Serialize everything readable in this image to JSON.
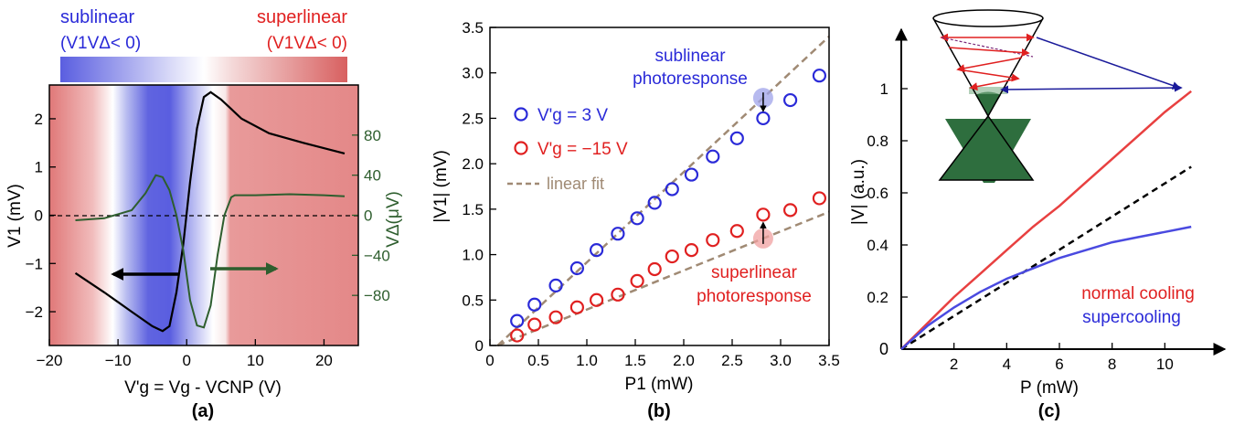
{
  "colors": {
    "blue": "#2a2ad8",
    "red": "#e02020",
    "green": "#2e5e2e",
    "tan": "#a08a74",
    "black": "#000000",
    "blue_band": "#5a5ee0",
    "red_band": "#e48888"
  },
  "chart_data": [
    {
      "type": "line",
      "panel_label": "(a)",
      "xlabel": "V'g = Vg - VCNP (V)",
      "ylabel_left": "V1 (mV)",
      "ylabel_right": "VΔ(μV)",
      "xlim": [
        -20,
        25
      ],
      "ylim_left": [
        -2.7,
        2.7
      ],
      "ylim_right": [
        -130,
        130
      ],
      "x_ticks": [
        -20,
        -10,
        0,
        10,
        20
      ],
      "y_ticks_left": [
        -2,
        -1,
        0,
        1,
        2
      ],
      "y_ticks_right": [
        -80,
        -40,
        0,
        40,
        80
      ],
      "colorbar": {
        "left_label": "sublinear",
        "left_sub": "(V1VΔ< 0)",
        "right_label": "superlinear",
        "right_sub": "(V1VΔ< 0)"
      },
      "series": [
        {
          "axis": "left",
          "x": [
            -16.2,
            -12,
            -8,
            -5,
            -3.5,
            -2.5,
            -1.5,
            -0.5,
            0.5,
            1.5,
            2.5,
            3.5,
            5,
            8,
            12,
            17,
            23
          ],
          "y": [
            -1.2,
            -1.6,
            -2.0,
            -2.3,
            -2.4,
            -2.3,
            -1.6,
            -0.6,
            0.7,
            1.8,
            2.45,
            2.55,
            2.4,
            2.0,
            1.7,
            1.5,
            1.28
          ]
        },
        {
          "axis": "right",
          "x": [
            -16.2,
            -12,
            -8,
            -6,
            -4.5,
            -3.5,
            -2.5,
            -1.5,
            -0.5,
            0.5,
            1.5,
            2.5,
            3.5,
            4.5,
            5.5,
            6.5,
            7,
            10,
            15,
            20,
            23
          ],
          "y": [
            -5,
            -3,
            5,
            22,
            40,
            38,
            25,
            0,
            -35,
            -85,
            -110,
            -112,
            -90,
            -40,
            0,
            18,
            20,
            20,
            21,
            20,
            19
          ]
        }
      ],
      "annotations": []
    },
    {
      "type": "scatter",
      "panel_label": "(b)",
      "xlabel": "P1 (mW)",
      "ylabel": "|V1| (mV)",
      "xlim": [
        0,
        3.5
      ],
      "ylim": [
        0,
        3.5
      ],
      "x_ticks": [
        0,
        0.5,
        1.0,
        1.5,
        2.0,
        2.5,
        3.0,
        3.5
      ],
      "y_ticks": [
        0,
        0.5,
        1.0,
        1.5,
        2.0,
        2.5,
        3.0,
        3.5
      ],
      "series": [
        {
          "name": "V'g = 3 V",
          "x": [
            0.28,
            0.46,
            0.68,
            0.9,
            1.1,
            1.32,
            1.52,
            1.7,
            1.88,
            2.08,
            2.3,
            2.55,
            2.82,
            3.1,
            3.4
          ],
          "y": [
            0.27,
            0.45,
            0.66,
            0.85,
            1.05,
            1.23,
            1.4,
            1.57,
            1.72,
            1.88,
            2.08,
            2.28,
            2.5,
            2.7,
            2.97
          ]
        },
        {
          "name": "V'g = −15 V",
          "x": [
            0.28,
            0.46,
            0.68,
            0.9,
            1.1,
            1.32,
            1.52,
            1.7,
            1.88,
            2.08,
            2.3,
            2.55,
            2.82,
            3.1,
            3.4
          ],
          "y": [
            0.11,
            0.23,
            0.31,
            0.42,
            0.5,
            0.56,
            0.71,
            0.84,
            0.98,
            1.05,
            1.16,
            1.26,
            1.44,
            1.49,
            1.62
          ]
        }
      ],
      "fits": [
        {
          "x": [
            0.08,
            3.5
          ],
          "y": [
            0.0,
            3.4
          ]
        },
        {
          "x": [
            0.08,
            3.5
          ],
          "y": [
            0.0,
            1.47
          ]
        }
      ],
      "legend": {
        "fit_label": "linear fit"
      },
      "annotations": [
        "sublinear",
        "photoresponse",
        "superlinear",
        "photoresponse"
      ]
    },
    {
      "type": "line",
      "panel_label": "(c)",
      "xlabel": "P (mW)",
      "ylabel": "|V| (a.u.)",
      "xlim": [
        0,
        12
      ],
      "ylim": [
        0,
        1.2
      ],
      "x_ticks": [
        2,
        4,
        6,
        8,
        10
      ],
      "y_ticks": [
        0,
        0.2,
        0.4,
        0.6,
        0.8,
        1
      ],
      "origin_label": "0",
      "series": [
        {
          "name": "normal cooling",
          "x": [
            0,
            1,
            2,
            3,
            4,
            5,
            6,
            7,
            8,
            9,
            10,
            11
          ],
          "y": [
            0,
            0.1,
            0.2,
            0.29,
            0.38,
            0.47,
            0.55,
            0.64,
            0.73,
            0.82,
            0.91,
            0.99
          ]
        },
        {
          "name": "linear",
          "x": [
            0,
            11
          ],
          "y": [
            0,
            0.7
          ]
        },
        {
          "name": "supercooling",
          "x": [
            0,
            1,
            2,
            3,
            4,
            5,
            6,
            7,
            8,
            9,
            10,
            11
          ],
          "y": [
            0,
            0.09,
            0.16,
            0.22,
            0.27,
            0.31,
            0.35,
            0.38,
            0.41,
            0.43,
            0.45,
            0.47
          ]
        }
      ],
      "annotations": [
        "normal cooling",
        "supercooling"
      ]
    }
  ]
}
